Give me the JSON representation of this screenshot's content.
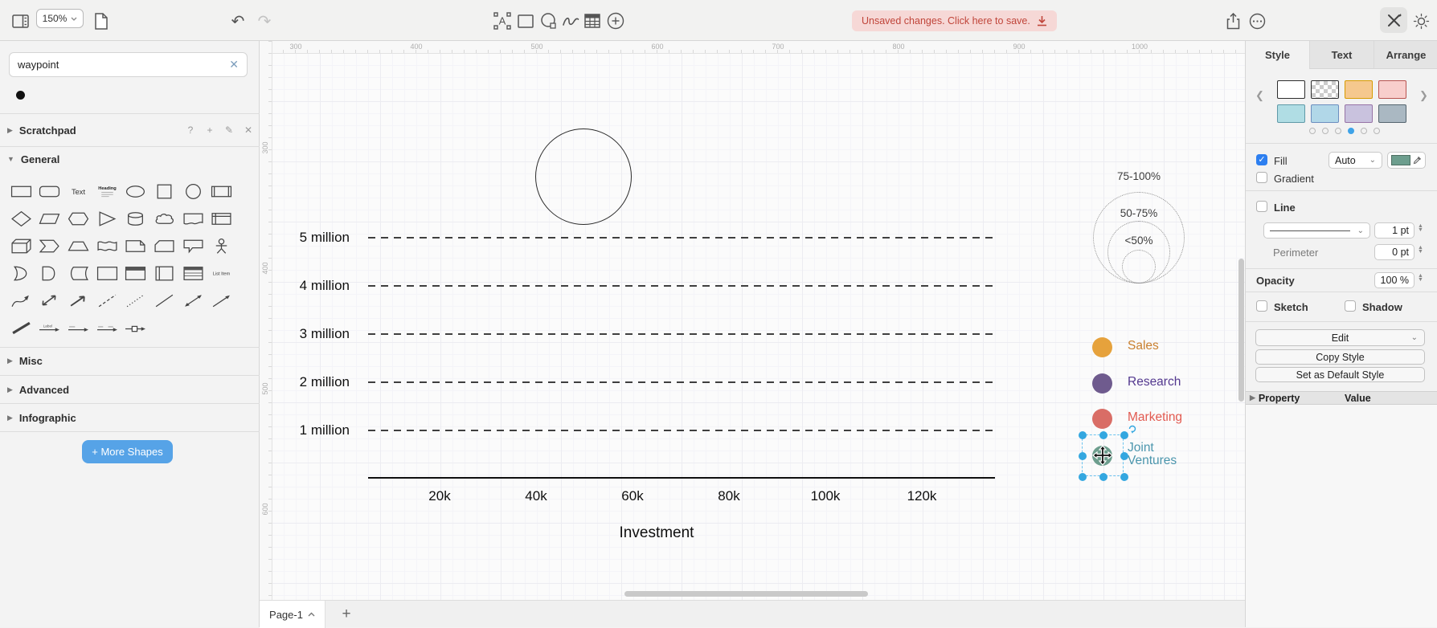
{
  "topbar": {
    "zoom_value": "150%",
    "unsaved_label": "Unsaved changes. Click here to save."
  },
  "sidebar": {
    "search_value": "waypoint",
    "sections": {
      "scratchpad": "Scratchpad",
      "general": "General",
      "misc": "Misc",
      "advanced": "Advanced",
      "infographic": "Infographic"
    },
    "scratchpad_icons": [
      "?",
      "+",
      "✎",
      "✕"
    ],
    "more_shapes": "+ More Shapes",
    "shapes": [
      "rectangle",
      "rounded-rectangle",
      "text",
      "heading",
      "ellipse",
      "square",
      "circle",
      "process",
      "diamond",
      "parallelogram",
      "hexagon",
      "triangle",
      "cylinder",
      "cloud",
      "document",
      "internal-storage",
      "cube",
      "step",
      "trapezoid",
      "tape",
      "note",
      "card",
      "callout",
      "actor",
      "or",
      "and",
      "data-storage",
      "container",
      "window",
      "vertical-container",
      "list",
      "list-item",
      "curve",
      "bidirectional-arrow",
      "arrow",
      "dashed-line",
      "dotted-line",
      "line",
      "bidirectional-connector",
      "directional-connector",
      "link",
      "arrow-with-label",
      "dotted-arrow-label",
      "dotted-arrow-labels",
      "connector-with-symbol"
    ]
  },
  "canvas": {
    "top_ruler": [
      "300",
      "400",
      "500",
      "600",
      "700",
      "800",
      "900",
      "1000"
    ],
    "left_ruler": [
      "300",
      "400",
      "500",
      "600"
    ],
    "chart": {
      "type": "bubble-chart-template",
      "y_labels": [
        "5 million",
        "4 million",
        "3 million",
        "2 million",
        "1 million"
      ],
      "x_labels": [
        "20k",
        "40k",
        "60k",
        "80k",
        "100k",
        "120k"
      ],
      "x_title": "Investment",
      "drawn_circle": {
        "approx_x": "50k",
        "approx_y": "6.3 million"
      },
      "legend": [
        {
          "label": "Sales",
          "color": "#e6a23c",
          "text_color": "#c9802f",
          "selected": false
        },
        {
          "label": "Research",
          "color": "#6f5b8e",
          "text_color": "#54398f",
          "selected": false
        },
        {
          "label": "Marketing",
          "color": "#d96d66",
          "text_color": "#e25a50",
          "selected": false
        },
        {
          "label": "Joint Ventures",
          "color": "#6d9e8e",
          "text_color": "#4b96ad",
          "selected": true
        }
      ],
      "size_legend": [
        "75-100%",
        "50-75%",
        "<50%"
      ]
    }
  },
  "footer": {
    "page_tab": "Page-1"
  },
  "panel": {
    "tabs": [
      "Style",
      "Text",
      "Arrange"
    ],
    "active_tab": "Style",
    "swatches": [
      {
        "name": "white",
        "fill": "#ffffff",
        "border": "#2d2d2d"
      },
      {
        "name": "transparent",
        "fill": "checker",
        "border": "#2d2d2d"
      },
      {
        "name": "orange",
        "fill": "#f5c88e",
        "border": "#d79b00"
      },
      {
        "name": "red",
        "fill": "#f8cecc",
        "border": "#b85450"
      },
      {
        "name": "cyan",
        "fill": "#b0dde4",
        "border": "#5f9aa8"
      },
      {
        "name": "blue",
        "fill": "#b1d7e8",
        "border": "#6c8ebf"
      },
      {
        "name": "purple",
        "fill": "#c9c2de",
        "border": "#9673a6"
      },
      {
        "name": "gray",
        "fill": "#aab8c2",
        "border": "#55656f"
      }
    ],
    "page_dots": {
      "count": 6,
      "active_index": 3
    },
    "fill": {
      "label": "Fill",
      "checked": true,
      "mode": "Auto",
      "color": "#6d9e8e"
    },
    "gradient": {
      "label": "Gradient",
      "checked": false
    },
    "line": {
      "label": "Line",
      "checked": false,
      "width": "1 pt"
    },
    "perimeter": {
      "label": "Perimeter",
      "value": "0 pt"
    },
    "opacity": {
      "label": "Opacity",
      "value": "100 %"
    },
    "sketch": {
      "label": "Sketch",
      "checked": false
    },
    "shadow": {
      "label": "Shadow",
      "checked": false
    },
    "buttons": {
      "edit": "Edit",
      "copy_style": "Copy Style",
      "set_default": "Set as Default Style"
    },
    "property_header": {
      "property": "Property",
      "value": "Value"
    }
  }
}
